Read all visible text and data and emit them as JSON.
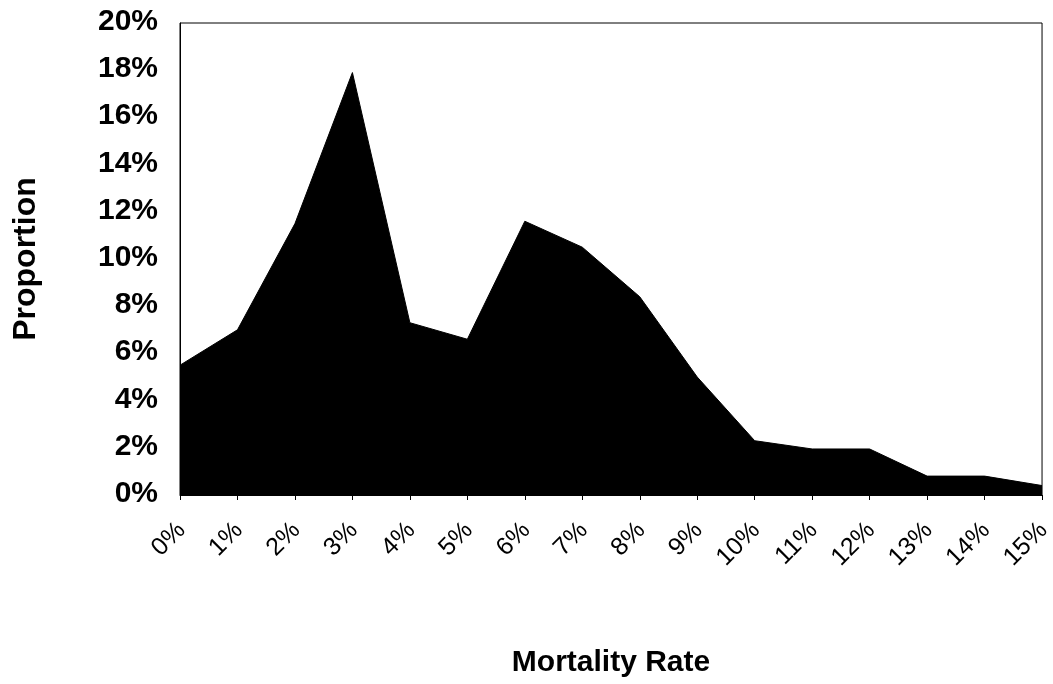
{
  "chart_data": {
    "type": "area",
    "xlabel": "Mortality Rate",
    "ylabel": "Proportion",
    "categories": [
      "0%",
      "1%",
      "2%",
      "3%",
      "4%",
      "5%",
      "6%",
      "7%",
      "8%",
      "9%",
      "10%",
      "11%",
      "12%",
      "13%",
      "14%",
      "15%"
    ],
    "values": [
      5.5,
      7.0,
      11.5,
      17.9,
      7.3,
      6.6,
      11.6,
      10.5,
      8.4,
      5.0,
      2.3,
      1.95,
      1.95,
      0.8,
      0.8,
      0.4
    ],
    "color": "#000000",
    "ylim": [
      0,
      20
    ],
    "yticks": [
      {
        "value": 0,
        "label": "0%"
      },
      {
        "value": 2,
        "label": "2%"
      },
      {
        "value": 4,
        "label": "4%"
      },
      {
        "value": 6,
        "label": "6%"
      },
      {
        "value": 8,
        "label": "8%"
      },
      {
        "value": 10,
        "label": "10%"
      },
      {
        "value": 12,
        "label": "12%"
      },
      {
        "value": 14,
        "label": "14%"
      },
      {
        "value": 16,
        "label": "16%"
      },
      {
        "value": 18,
        "label": "18%"
      },
      {
        "value": 20,
        "label": "20%"
      }
    ],
    "grid": false,
    "marker": "none",
    "line_style": "solid"
  }
}
